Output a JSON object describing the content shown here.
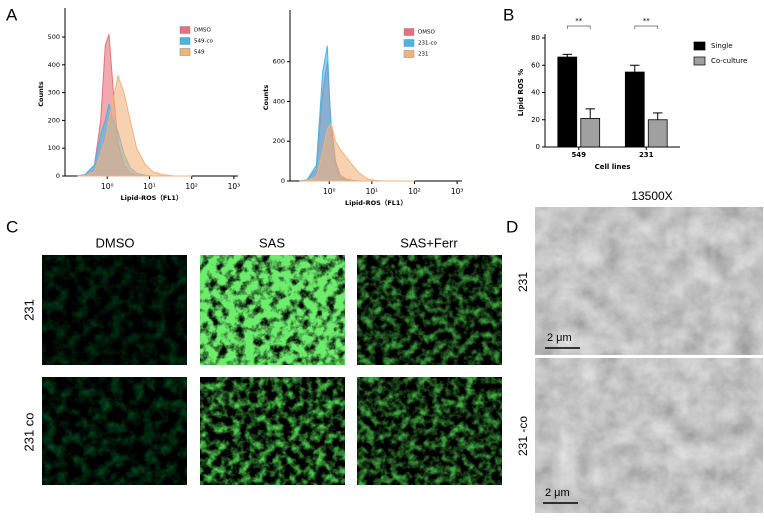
{
  "panel_labels": [
    "A",
    "B",
    "C",
    "D"
  ],
  "chart_data": [
    {
      "type": "area",
      "xlog": true,
      "x": [
        0.2,
        0.3,
        0.5,
        0.7,
        0.9,
        1.1,
        1.4,
        1.8,
        2.5,
        3.5,
        5,
        8,
        12,
        20,
        40,
        100
      ],
      "xlim": [
        0.1,
        1250
      ],
      "xticks": [
        {
          "value": 1,
          "label": "10⁰"
        },
        {
          "value": 10,
          "label": "10¹"
        },
        {
          "value": 100,
          "label": "10²"
        },
        {
          "value": 1000,
          "label": "10³"
        }
      ],
      "ylim": [
        0,
        590
      ],
      "yticks": [
        0,
        100,
        200,
        300,
        400,
        500
      ],
      "xlabel": "Lipid-ROS（FL1）",
      "ylabel": "Counts",
      "legend": "upper right",
      "series": [
        {
          "name": "DMSO",
          "color": "#e8707a",
          "values": [
            0,
            5,
            40,
            200,
            470,
            510,
            300,
            120,
            40,
            10,
            3,
            0,
            0,
            0,
            0,
            0
          ]
        },
        {
          "name": "549-co",
          "color": "#45b6e6",
          "values": [
            0,
            5,
            40,
            150,
            200,
            260,
            200,
            160,
            80,
            30,
            10,
            3,
            0,
            0,
            0,
            0
          ]
        },
        {
          "name": "549",
          "color": "#f2b27c",
          "values": [
            0,
            2,
            15,
            80,
            130,
            200,
            280,
            360,
            300,
            200,
            100,
            40,
            15,
            5,
            0,
            0
          ]
        }
      ]
    },
    {
      "type": "area",
      "xlog": true,
      "x": [
        0.2,
        0.3,
        0.5,
        0.7,
        0.9,
        1.1,
        1.4,
        1.8,
        2.5,
        3.5,
        5,
        8,
        12,
        20,
        40,
        100
      ],
      "xlim": [
        0.12,
        1300
      ],
      "xticks": [
        {
          "value": 1,
          "label": "10⁰"
        },
        {
          "value": 10,
          "label": "10¹"
        },
        {
          "value": 100,
          "label": "10²"
        },
        {
          "value": 1000,
          "label": "10³"
        }
      ],
      "ylim": [
        0,
        840
      ],
      "yticks": [
        0,
        200,
        400,
        600
      ],
      "xlabel": "Lipid-ROS（FL1）",
      "ylabel": "Counts",
      "legend": "upper right",
      "series": [
        {
          "name": "DMSO",
          "color": "#e8707a",
          "values": [
            0,
            5,
            60,
            450,
            600,
            300,
            100,
            30,
            10,
            3,
            0,
            0,
            0,
            0,
            0,
            0
          ]
        },
        {
          "name": "231-co",
          "color": "#45b6e6",
          "values": [
            0,
            5,
            80,
            550,
            680,
            250,
            80,
            20,
            5,
            0,
            0,
            0,
            0,
            0,
            0,
            0
          ]
        },
        {
          "name": "231",
          "color": "#f2b27c",
          "values": [
            0,
            2,
            20,
            150,
            260,
            290,
            200,
            160,
            120,
            80,
            40,
            10,
            3,
            0,
            0,
            0
          ]
        }
      ]
    },
    {
      "type": "bar",
      "categories": [
        "549",
        "231"
      ],
      "ylim": [
        0,
        80
      ],
      "yticks": [
        0,
        20,
        40,
        60,
        80
      ],
      "ylabel": "Lipid ROS %",
      "xlabel": "Cell lines",
      "legend": "right",
      "annotations": [
        "**",
        "**"
      ],
      "series": [
        {
          "name": "Single",
          "color": "#000000",
          "values": [
            66,
            55
          ],
          "errors": [
            2,
            5
          ]
        },
        {
          "name": "Co-culture",
          "color": "#a0a0a0",
          "values": [
            21,
            20
          ],
          "errors": [
            7,
            5
          ]
        }
      ]
    }
  ],
  "panel_c": {
    "columns": [
      "DMSO",
      "SAS",
      "SAS+Ferr"
    ],
    "rows": [
      "231",
      "231 co"
    ]
  },
  "panel_d": {
    "title": "13500X",
    "rows": [
      "231",
      "231 -co"
    ],
    "scale_bar": "2 μm"
  }
}
